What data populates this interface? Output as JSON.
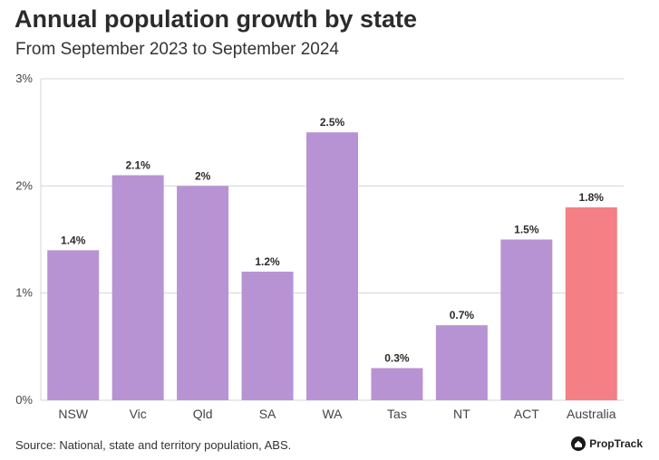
{
  "colors": {
    "bar": "#b893d4",
    "highlight": "#f47f85",
    "grid": "#d4d4d4",
    "text": "#333333"
  },
  "chart_data": {
    "type": "bar",
    "title": "Annual population growth by state",
    "subtitle": "From September 2023 to September 2024",
    "categories": [
      "NSW",
      "Vic",
      "Qld",
      "SA",
      "WA",
      "Tas",
      "NT",
      "ACT",
      "Australia"
    ],
    "values": [
      1.4,
      2.1,
      2.0,
      1.2,
      2.5,
      0.3,
      0.7,
      1.5,
      1.8
    ],
    "labels": [
      "1.4%",
      "2.1%",
      "2%",
      "1.2%",
      "2.5%",
      "0.3%",
      "0.7%",
      "1.5%",
      "1.8%"
    ],
    "highlight_category": "Australia",
    "ylim": [
      0,
      3
    ],
    "yticks": [
      0,
      1,
      2,
      3
    ],
    "ytick_labels": [
      "0%",
      "1%",
      "2%",
      "3%"
    ],
    "xlabel": "",
    "ylabel": "",
    "grid": true,
    "legend": "none"
  },
  "footer": {
    "source": "Source: National, state and territory population, ABS.",
    "brand": "PropTrack",
    "brand_icon": "house-icon"
  }
}
